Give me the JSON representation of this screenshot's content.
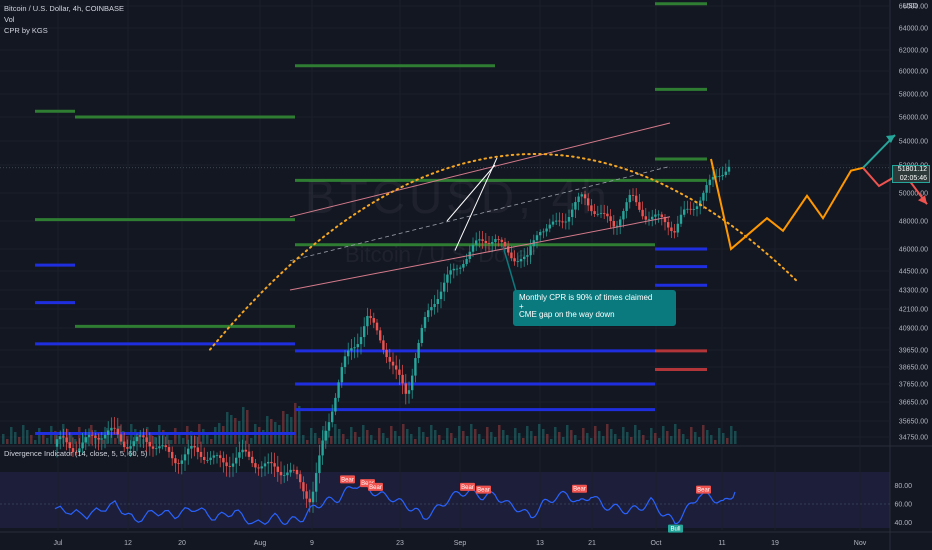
{
  "legend": {
    "symbol": "Bitcoin / U.S. Dollar, 4h, COINBASE",
    "vol": "Vol",
    "cpr": "CPR by KGS"
  },
  "oscillator_title": "Divergence Indicator (14, close, 5, 5, 60, 5)",
  "watermark": "BTCUSD, 4h",
  "watermark_sub": "Bitcoin / U.S. Dollar",
  "annotation": {
    "line1": "Monthly CPR is 90% of times claimed",
    "line2": "+",
    "line3": "CME gap on the way down"
  },
  "price_tag": {
    "price": "51801.12",
    "countdown": "02:05:46"
  },
  "currency": "USD",
  "colors": {
    "background": "#131722",
    "cpr_green": "#2e7d32",
    "cpr_blue": "#1f2fe0",
    "cpr_red": "#b2353a",
    "channel": "#d57a8a",
    "curve": "#f5a623",
    "projection": "#ff9800",
    "rsi": "#2962ff",
    "bear": "#ef5350",
    "bull": "#26a69a"
  },
  "chart_data": [
    {
      "type": "candlestick",
      "title": "Bitcoin / U.S. Dollar, 4h, COINBASE",
      "y_axis_labels": [
        66000,
        64000,
        62000,
        60000,
        58000,
        56000,
        54000,
        52000,
        50000,
        48000,
        46000,
        44500,
        43300,
        42100,
        40900,
        39650,
        38650,
        37650,
        36650,
        35650,
        34750
      ],
      "x_axis_labels": [
        "Jul",
        "12",
        "20",
        "Aug",
        "9",
        "23",
        "Sep",
        "13",
        "21",
        "Oct",
        "11",
        "19",
        "Nov"
      ],
      "last_price": 51801.12,
      "price_path": [
        [
          0,
          34200
        ],
        [
          0.15,
          34900
        ],
        [
          0.3,
          33800
        ],
        [
          0.45,
          33500
        ],
        [
          0.55,
          33200
        ],
        [
          0.64,
          31500
        ],
        [
          0.67,
          34500
        ],
        [
          0.72,
          38500
        ],
        [
          0.75,
          40100
        ],
        [
          0.78,
          41800
        ],
        [
          0.82,
          39800
        ],
        [
          0.85,
          38200
        ],
        [
          0.88,
          37300
        ],
        [
          0.9,
          39500
        ],
        [
          0.93,
          41500
        ],
        [
          0.98,
          44000
        ],
        [
          1.02,
          45500
        ],
        [
          1.06,
          46200
        ],
        [
          1.1,
          46800
        ],
        [
          1.14,
          45800
        ],
        [
          1.18,
          44900
        ],
        [
          1.21,
          47500
        ],
        [
          1.24,
          47800
        ],
        [
          1.28,
          48300
        ],
        [
          1.32,
          49500
        ],
        [
          1.36,
          48800
        ],
        [
          1.4,
          47600
        ],
        [
          1.44,
          49500
        ],
        [
          1.48,
          48600
        ],
        [
          1.52,
          48000
        ],
        [
          1.55,
          47100
        ],
        [
          1.57,
          48400
        ],
        [
          1.6,
          49500
        ],
        [
          1.64,
          50600
        ],
        [
          1.66,
          51200
        ],
        [
          1.69,
          51900
        ]
      ],
      "cpr_levels": [
        {
          "from": -0.05,
          "to": 0.05,
          "price": 56500,
          "color": "green"
        },
        {
          "from": 0.05,
          "to": 0.6,
          "price": 56000,
          "color": "green"
        },
        {
          "from": 0.6,
          "to": 1.1,
          "price": 60500,
          "color": "green"
        },
        {
          "from": 1.5,
          "to": 1.63,
          "price": 66200,
          "color": "green"
        },
        {
          "from": 1.5,
          "to": 1.63,
          "price": 58400,
          "color": "green"
        },
        {
          "from": 1.5,
          "to": 1.63,
          "price": 52500,
          "color": "green"
        },
        {
          "from": -0.05,
          "to": 0.6,
          "price": 48100,
          "color": "green"
        },
        {
          "from": 0.6,
          "to": 1.63,
          "price": 50900,
          "color": "green"
        },
        {
          "from": 0.05,
          "to": 0.6,
          "price": 41000,
          "color": "green"
        },
        {
          "from": 0.6,
          "to": 1.5,
          "price": 46300,
          "color": "green"
        },
        {
          "from": -0.05,
          "to": 0.05,
          "price": 44900,
          "color": "blue"
        },
        {
          "from": -0.05,
          "to": 0.05,
          "price": 42500,
          "color": "blue"
        },
        {
          "from": -0.05,
          "to": 0.6,
          "price": 40000,
          "color": "blue"
        },
        {
          "from": 0.6,
          "to": 1.5,
          "price": 39600,
          "color": "blue"
        },
        {
          "from": 0.6,
          "to": 1.5,
          "price": 37650,
          "color": "blue"
        },
        {
          "from": 0.6,
          "to": 1.5,
          "price": 36250,
          "color": "blue"
        },
        {
          "from": -0.05,
          "to": 0.6,
          "price": 34950,
          "color": "blue"
        },
        {
          "from": 1.5,
          "to": 1.63,
          "price": 46000,
          "color": "blue"
        },
        {
          "from": 1.5,
          "to": 1.63,
          "price": 44800,
          "color": "blue"
        },
        {
          "from": 1.5,
          "to": 1.63,
          "price": 43600,
          "color": "blue"
        },
        {
          "from": 1.5,
          "to": 1.63,
          "price": 39600,
          "color": "red"
        },
        {
          "from": 1.5,
          "to": 1.63,
          "price": 38500,
          "color": "red"
        }
      ],
      "projection_path": [
        [
          1.64,
          52500
        ],
        [
          1.69,
          46000
        ],
        [
          1.78,
          48200
        ],
        [
          1.82,
          47300
        ],
        [
          1.88,
          49800
        ],
        [
          1.92,
          48200
        ],
        [
          1.99,
          51600
        ],
        [
          2.02,
          51800
        ]
      ],
      "up_arrow_path": [
        [
          2.02,
          51800
        ],
        [
          2.1,
          54500
        ]
      ],
      "down_arrow_path": [
        [
          2.02,
          51800
        ],
        [
          2.06,
          50500
        ],
        [
          2.12,
          51500
        ],
        [
          2.18,
          49200
        ]
      ]
    },
    {
      "type": "line",
      "title": "Divergence Indicator (14, close, 5, 5, 60, 5)",
      "y_axis_labels": [
        80.0,
        60.0,
        40.0
      ],
      "ylim": [
        30,
        90
      ],
      "series": [
        {
          "name": "Divergence Indicator",
          "values": [
            [
              0,
              55
            ],
            [
              0.08,
              48
            ],
            [
              0.15,
              60
            ],
            [
              0.2,
              42
            ],
            [
              0.25,
              52
            ],
            [
              0.3,
              48
            ],
            [
              0.35,
              56
            ],
            [
              0.4,
              45
            ],
            [
              0.45,
              52
            ],
            [
              0.5,
              38
            ],
            [
              0.55,
              46
            ],
            [
              0.58,
              41
            ],
            [
              0.62,
              45
            ],
            [
              0.65,
              58
            ],
            [
              0.68,
              63
            ],
            [
              0.71,
              66
            ],
            [
              0.73,
              74
            ],
            [
              0.75,
              81
            ],
            [
              0.78,
              77
            ],
            [
              0.81,
              70
            ],
            [
              0.84,
              67
            ],
            [
              0.87,
              60
            ],
            [
              0.9,
              54
            ],
            [
              0.92,
              45
            ],
            [
              0.95,
              53
            ],
            [
              0.98,
              64
            ],
            [
              1.01,
              72
            ],
            [
              1.04,
              73
            ],
            [
              1.07,
              68
            ],
            [
              1.1,
              70
            ],
            [
              1.13,
              60
            ],
            [
              1.16,
              55
            ],
            [
              1.19,
              46
            ],
            [
              1.22,
              60
            ],
            [
              1.25,
              67
            ],
            [
              1.28,
              71
            ],
            [
              1.31,
              60
            ],
            [
              1.34,
              70
            ],
            [
              1.37,
              58
            ],
            [
              1.4,
              56
            ],
            [
              1.43,
              53
            ],
            [
              1.46,
              55
            ],
            [
              1.49,
              63
            ],
            [
              1.52,
              50
            ],
            [
              1.55,
              40
            ],
            [
              1.58,
              54
            ],
            [
              1.61,
              70
            ],
            [
              1.64,
              68
            ],
            [
              1.67,
              60
            ],
            [
              1.7,
              73
            ]
          ]
        }
      ],
      "bear_labels": [
        {
          "x": 0.73,
          "value": 81,
          "text": "Bear"
        },
        {
          "x": 0.78,
          "value": 77,
          "text": "Bear"
        },
        {
          "x": 0.8,
          "value": 73,
          "text": "Bear"
        },
        {
          "x": 1.03,
          "value": 73,
          "text": "Bear"
        },
        {
          "x": 1.07,
          "value": 70,
          "text": "Bear"
        },
        {
          "x": 1.31,
          "value": 71,
          "text": "Bear"
        },
        {
          "x": 1.62,
          "value": 70,
          "text": "Bear"
        }
      ],
      "bull_labels": [
        {
          "x": 1.55,
          "value": 40,
          "text": "Bull"
        }
      ]
    }
  ]
}
